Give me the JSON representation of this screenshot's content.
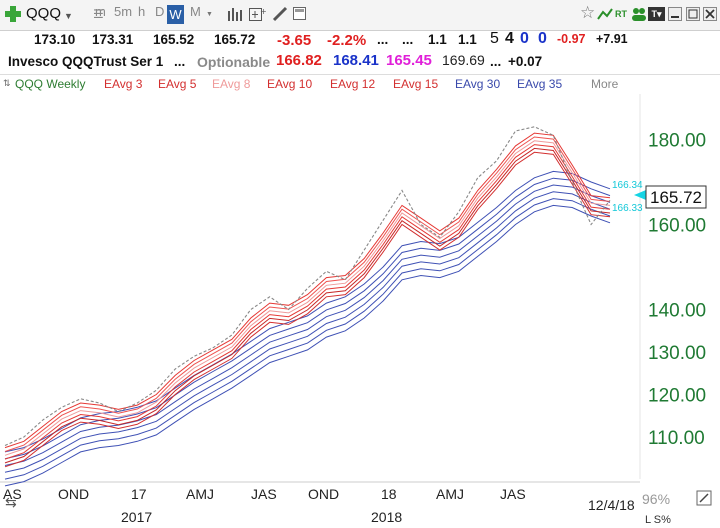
{
  "toolbar": {
    "symbol": "QQQ",
    "timeframes": [
      "m",
      "5m",
      "h",
      "D",
      "W",
      "M"
    ],
    "active_timeframe": "W",
    "rt_label": "RT",
    "tv_label": "T▾"
  },
  "quote": {
    "open": "173.10",
    "high": "173.31",
    "low": "165.52",
    "last": "165.72",
    "change": "-3.65",
    "change_pct": "-2.2%",
    "dots1": "...",
    "dots2": "...",
    "v1": "1.1",
    "v2": "1.1",
    "n5": "5",
    "n4": "4",
    "n0a": "0",
    "n0b": "0",
    "chg2": "-0.97",
    "chg3": "+7.91"
  },
  "name_row": {
    "name": "Invesco QQQTrust Ser 1",
    "dots": "...",
    "optionable": "Optionable",
    "p1": "166.82",
    "p2": "168.41",
    "p3": "165.45",
    "p4": "169.69",
    "p5": "...",
    "p6": "+0.07"
  },
  "studies": [
    {
      "label": "QQQ Weekly",
      "color": "#2e7d32"
    },
    {
      "label": "EAvg 3",
      "color": "#d32f2f"
    },
    {
      "label": "EAvg 5",
      "color": "#d32f2f"
    },
    {
      "label": "EAvg 8",
      "color": "#ef9a9a"
    },
    {
      "label": "EAvg 10",
      "color": "#d32f2f"
    },
    {
      "label": "EAvg 12",
      "color": "#d32f2f"
    },
    {
      "label": "EAvg 15",
      "color": "#d32f2f"
    },
    {
      "label": "EAvg 30",
      "color": "#3949ab"
    },
    {
      "label": "EAvg 35",
      "color": "#3949ab"
    },
    {
      "label": "More",
      "color": "#888888"
    }
  ],
  "chart_data": {
    "type": "line",
    "ylim": [
      106,
      186
    ],
    "y_ticks": [
      110.0,
      120.0,
      130.0,
      140.0,
      160.0,
      180.0
    ],
    "y_tick_labels": [
      "110.00",
      "120.00",
      "130.00",
      "140.00",
      "160.00",
      "180.00"
    ],
    "x_tick_labels": [
      "AS",
      "OND",
      "17",
      "AMJ",
      "JAS",
      "OND",
      "18",
      "AMJ",
      "JAS",
      "12/4/18"
    ],
    "year_labels": [
      "2017",
      "2018"
    ],
    "last_price_label": "165.72",
    "ma_label_upper": "166.34",
    "ma_label_lower": "166.33",
    "zoom_text": "96%",
    "scale_text": "L S%",
    "series": [
      {
        "role": "price",
        "color": "#888888",
        "values": [
          108,
          110,
          114,
          117,
          119,
          118,
          116,
          118,
          121,
          126,
          129,
          131,
          134,
          140,
          143,
          140,
          145,
          149,
          147,
          154,
          161,
          168,
          160,
          157,
          163,
          171,
          175,
          182,
          183,
          181,
          170,
          160,
          165.7
        ]
      },
      {
        "role": "short-ema",
        "color": "#e53935",
        "values": [
          107.5,
          109,
          112.5,
          116,
          118,
          117.5,
          116.5,
          117.5,
          120,
          124.5,
          128,
          130.5,
          133,
          138,
          141.5,
          141,
          143.5,
          147.5,
          148,
          152,
          158,
          164.5,
          161.5,
          158.5,
          161.5,
          168,
          173,
          178.5,
          181.5,
          181,
          174,
          166.8,
          166.3
        ]
      },
      {
        "role": "long-ema",
        "color": "#3f51b5",
        "values": [
          106.5,
          107.5,
          109.5,
          112,
          114.5,
          115.5,
          116,
          117,
          118.5,
          121.5,
          124.5,
          127,
          129.5,
          132.5,
          135.5,
          137,
          138.5,
          141.5,
          143,
          146,
          150,
          155,
          156,
          155.5,
          157,
          160.5,
          164,
          168,
          171,
          172.5,
          172,
          170,
          168.4
        ]
      }
    ]
  }
}
